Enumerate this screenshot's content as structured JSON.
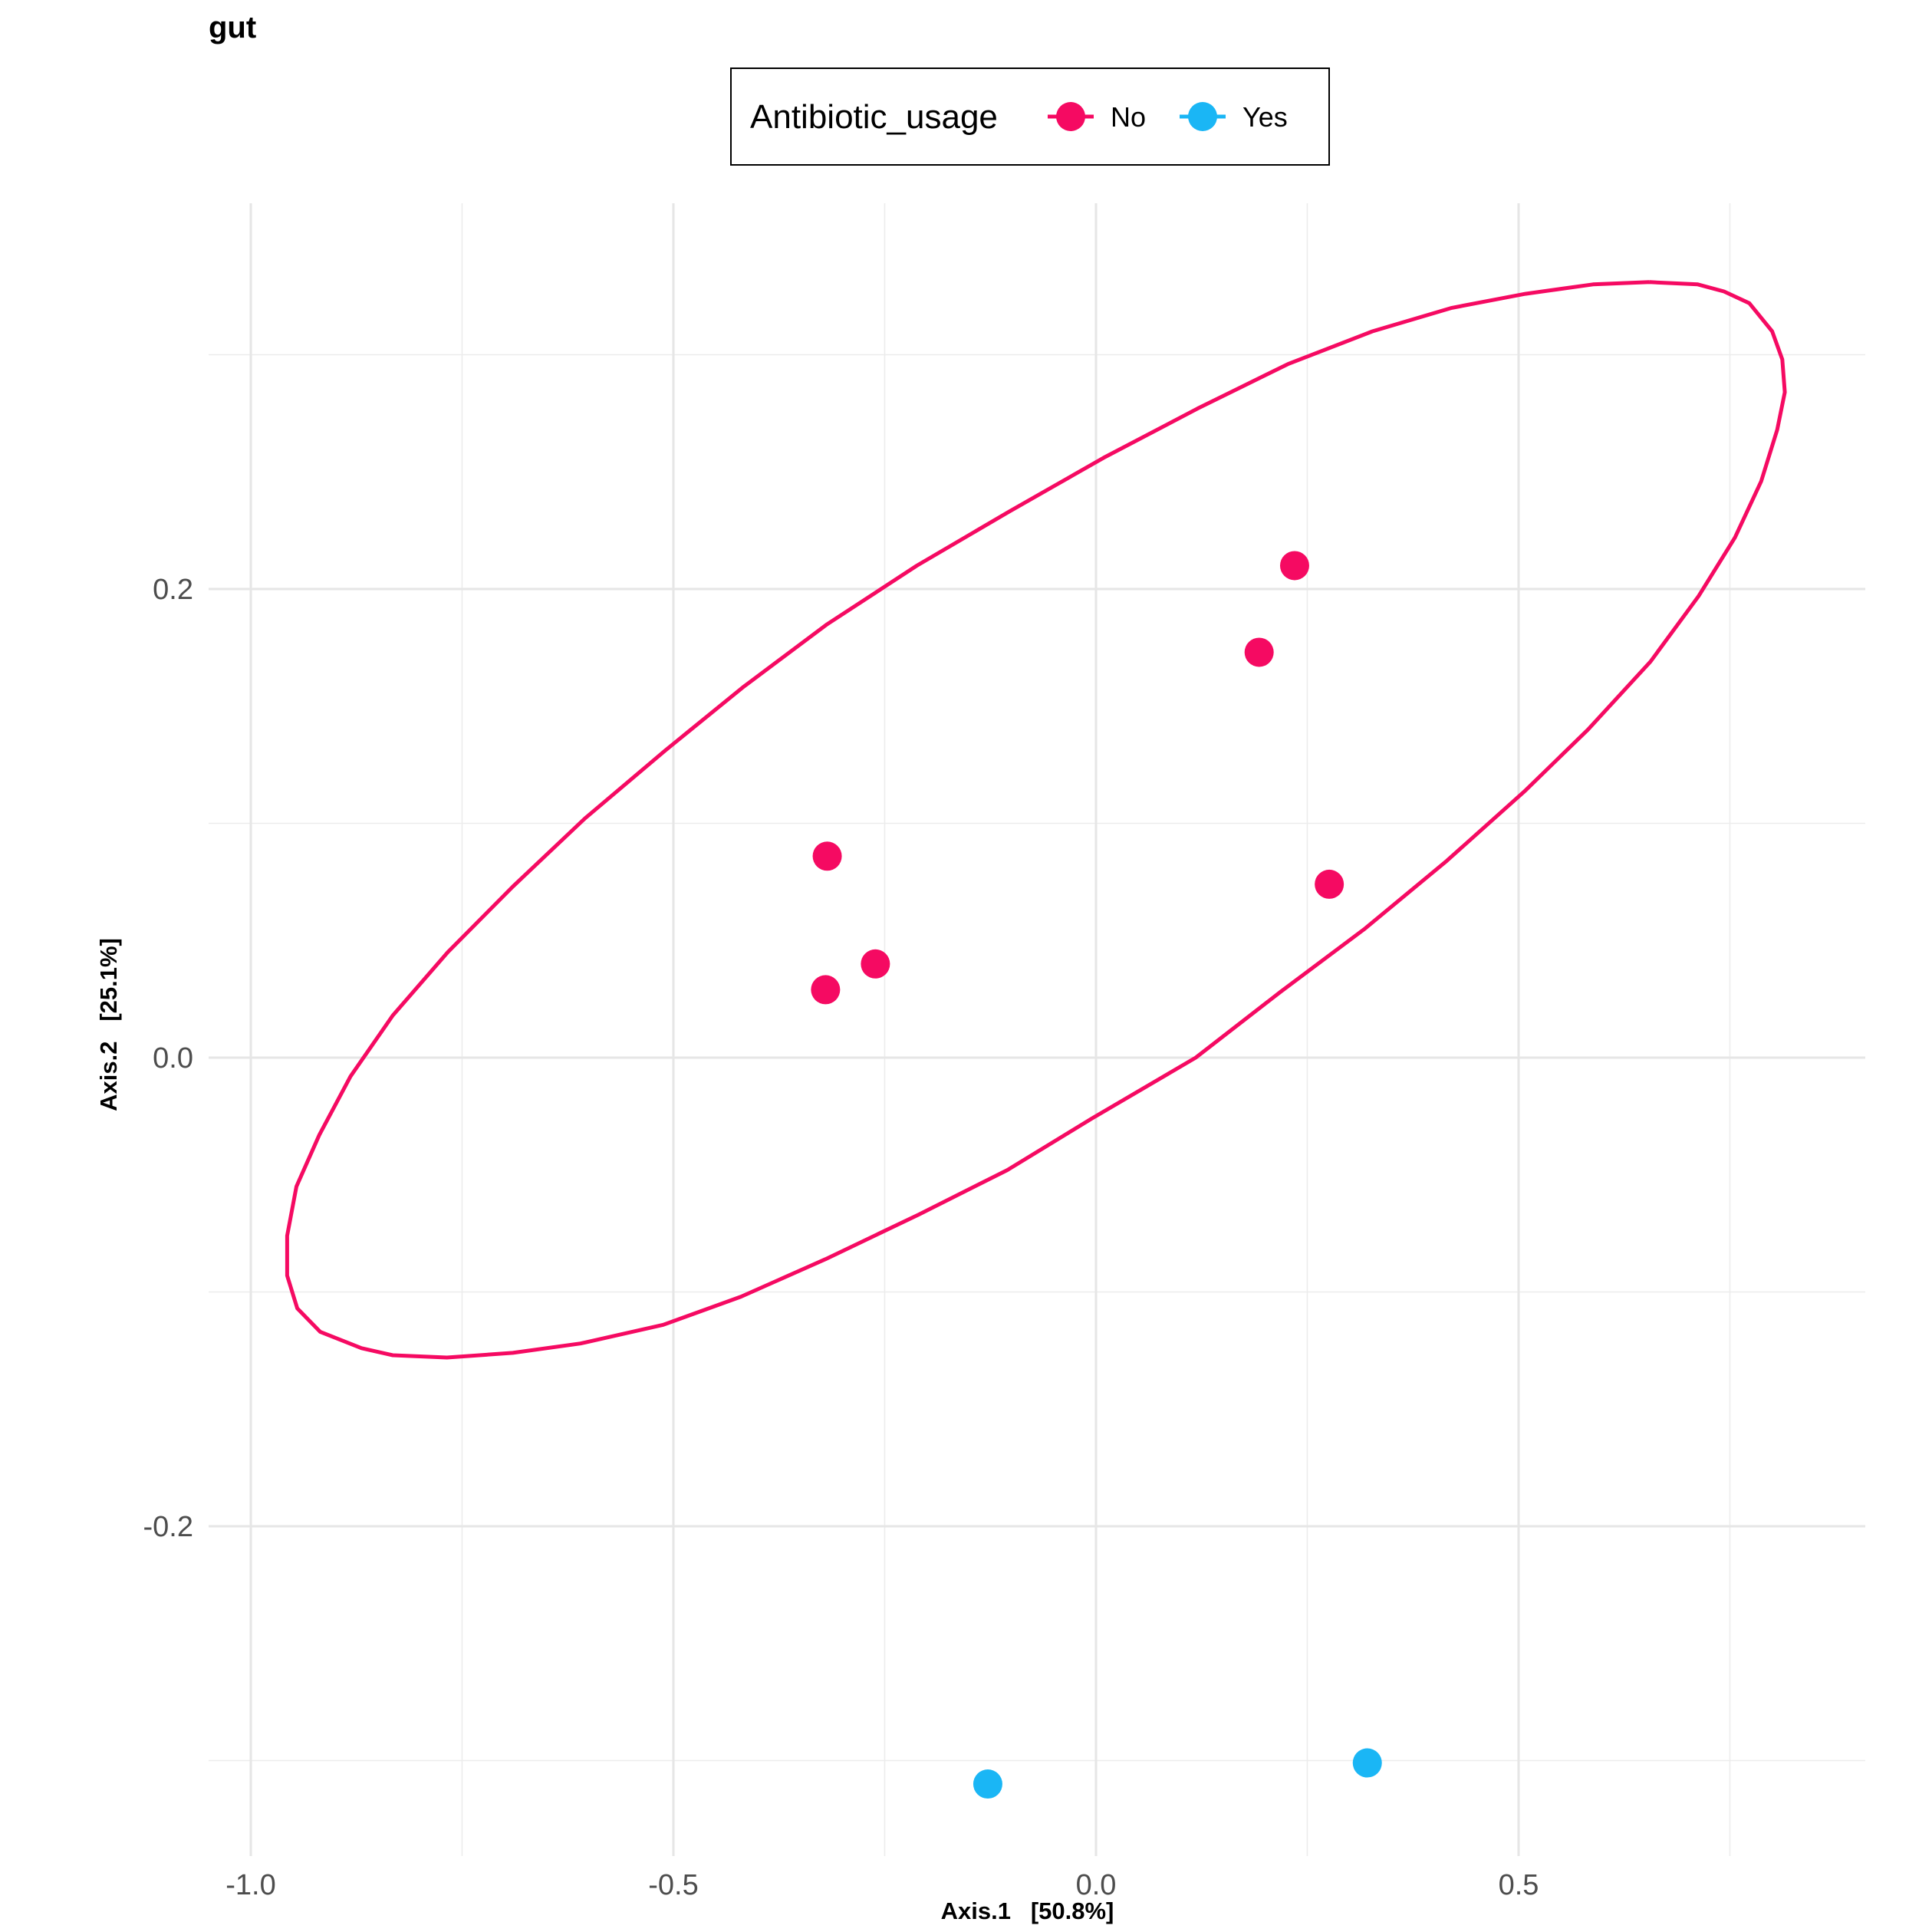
{
  "chart_data": {
    "type": "scatter",
    "title": "gut",
    "xlabel": "Axis.1   [50.8%]",
    "ylabel": "Axis.2   [25.1%]",
    "xlim": [
      -1.0,
      0.9
    ],
    "ylim": [
      -0.33,
      0.37
    ],
    "x_ticks": [
      {
        "value": -1.0,
        "label": "-1.0"
      },
      {
        "value": -0.5,
        "label": "-0.5"
      },
      {
        "value": 0.0,
        "label": "0.0"
      },
      {
        "value": 0.5,
        "label": "0.5"
      }
    ],
    "y_ticks": [
      {
        "value": -0.2,
        "label": "-0.2"
      },
      {
        "value": 0.0,
        "label": "0.0"
      },
      {
        "value": 0.2,
        "label": "0.2"
      }
    ],
    "grid": true,
    "legend": {
      "title": "Antibiotic_usage",
      "position": "top",
      "entries": [
        {
          "label": "No",
          "color": "#F50A62"
        },
        {
          "label": "Yes",
          "color": "#1AB6F5"
        }
      ]
    },
    "series": [
      {
        "name": "No",
        "color": "#F50A62",
        "points": [
          {
            "x": 0.235,
            "y": 0.21
          },
          {
            "x": 0.193,
            "y": 0.173
          },
          {
            "x": -0.318,
            "y": 0.086
          },
          {
            "x": 0.276,
            "y": 0.074
          },
          {
            "x": -0.261,
            "y": 0.04
          },
          {
            "x": -0.32,
            "y": 0.029
          }
        ]
      },
      {
        "name": "Yes",
        "color": "#1AB6F5",
        "points": [
          {
            "x": -0.128,
            "y": -0.31
          },
          {
            "x": 0.321,
            "y": -0.301
          }
        ]
      }
    ],
    "ellipse": {
      "series": "No",
      "color": "#F50A62",
      "points": [
        [
          0.655,
          0.331
        ],
        [
          0.588,
          0.33
        ],
        [
          0.508,
          0.326
        ],
        [
          0.421,
          0.32
        ],
        [
          0.327,
          0.31
        ],
        [
          0.227,
          0.296
        ],
        [
          0.12,
          0.277
        ],
        [
          0.009,
          0.256
        ],
        [
          -0.103,
          0.233
        ],
        [
          -0.212,
          0.21
        ],
        [
          -0.318,
          0.185
        ],
        [
          -0.418,
          0.158
        ],
        [
          -0.51,
          0.131
        ],
        [
          -0.605,
          0.102
        ],
        [
          -0.69,
          0.073
        ],
        [
          -0.767,
          0.045
        ],
        [
          -0.832,
          0.018
        ],
        [
          -0.882,
          -0.008
        ],
        [
          -0.919,
          -0.033
        ],
        [
          -0.946,
          -0.055
        ],
        [
          -0.957,
          -0.076
        ],
        [
          -0.957,
          -0.093
        ],
        [
          -0.945,
          -0.107
        ],
        [
          -0.918,
          -0.117
        ],
        [
          -0.869,
          -0.124
        ],
        [
          -0.832,
          -0.127
        ],
        [
          -0.768,
          -0.128
        ],
        [
          -0.69,
          -0.126
        ],
        [
          -0.61,
          -0.122
        ],
        [
          -0.512,
          -0.114
        ],
        [
          -0.42,
          -0.102
        ],
        [
          -0.32,
          -0.086
        ],
        [
          -0.21,
          -0.067
        ],
        [
          -0.105,
          -0.048
        ],
        [
          -0.005,
          -0.026
        ],
        [
          0.118,
          0.0
        ],
        [
          0.218,
          0.028
        ],
        [
          0.318,
          0.055
        ],
        [
          0.415,
          0.084
        ],
        [
          0.508,
          0.114
        ],
        [
          0.582,
          0.14
        ],
        [
          0.656,
          0.169
        ],
        [
          0.713,
          0.197
        ],
        [
          0.756,
          0.222
        ],
        [
          0.787,
          0.246
        ],
        [
          0.806,
          0.268
        ],
        [
          0.815,
          0.284
        ],
        [
          0.812,
          0.298
        ],
        [
          0.8,
          0.31
        ],
        [
          0.773,
          0.322
        ],
        [
          0.743,
          0.327
        ],
        [
          0.712,
          0.33
        ],
        [
          0.655,
          0.331
        ]
      ]
    }
  }
}
